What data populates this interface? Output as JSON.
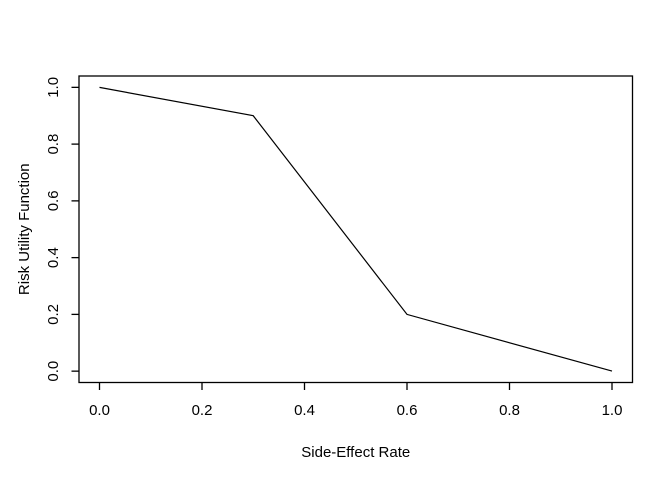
{
  "chart_data": {
    "type": "line",
    "title": "",
    "xlabel": "Side-Effect Rate",
    "ylabel": "Risk Utility Function",
    "x": [
      0.0,
      0.3,
      0.6,
      1.0
    ],
    "y": [
      1.0,
      0.9,
      0.2,
      0.0
    ],
    "xlim": [
      0.0,
      1.0
    ],
    "ylim": [
      0.0,
      1.0
    ],
    "xtick_values": [
      0.0,
      0.2,
      0.4,
      0.6,
      0.8,
      1.0
    ],
    "xtick_labels": [
      "0.0",
      "0.2",
      "0.4",
      "0.6",
      "0.8",
      "1.0"
    ],
    "ytick_values": [
      0.0,
      0.2,
      0.4,
      0.6,
      0.8,
      1.0
    ],
    "ytick_labels": [
      "0.0",
      "0.2",
      "0.4",
      "0.6",
      "0.8",
      "1.0"
    ],
    "grid": false,
    "legend": "none",
    "line_color": "#000000",
    "axis_color": "#000000",
    "background_color": "#ffffff",
    "style": "r-base-plot"
  }
}
